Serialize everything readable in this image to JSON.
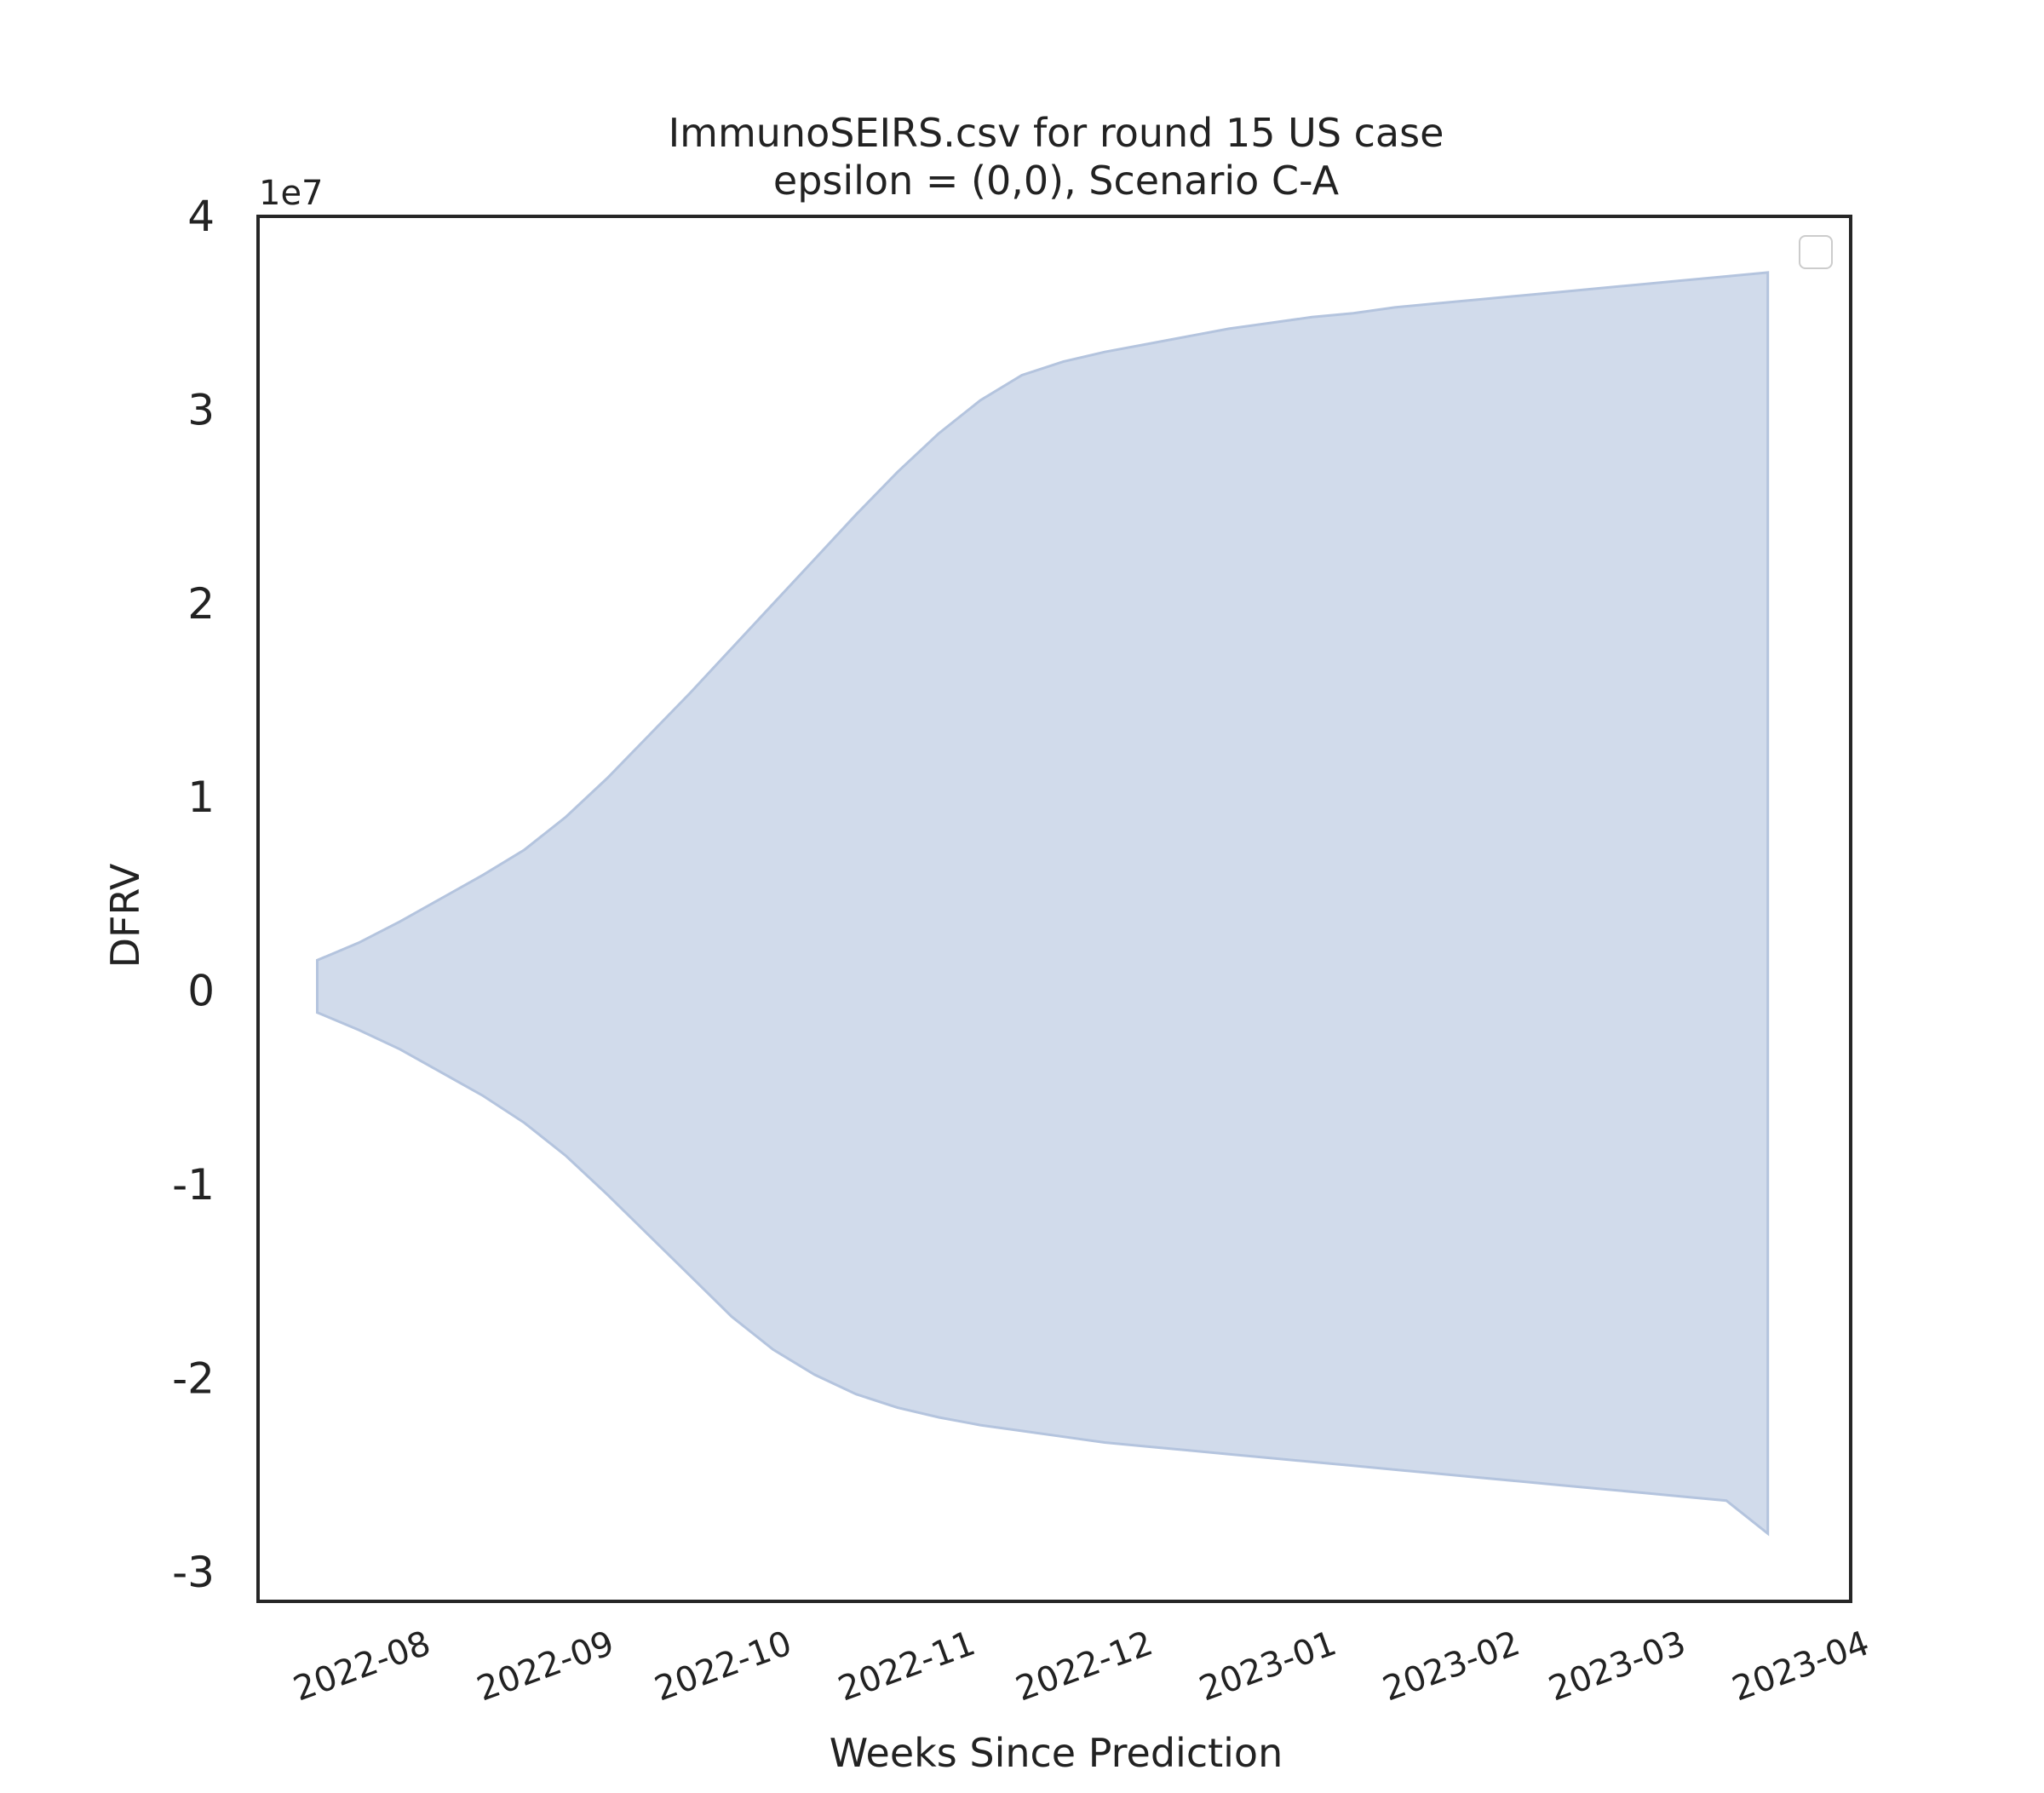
{
  "chart_data": {
    "type": "area",
    "title_line1": "ImmunoSEIRS.csv for round 15 US case",
    "title_line2": "epsilon = (0,0), Scenario C-A",
    "xlabel": "Weeks Since Prediction",
    "ylabel": "DFRV",
    "y_offset_label": "1e7",
    "y_scale": 10000000,
    "ylim": [
      -3.15,
      4.0
    ],
    "xlim": [
      "2022-07-14",
      "2023-04-09"
    ],
    "x_tick_labels": [
      "2022-08",
      "2022-09",
      "2022-10",
      "2022-11",
      "2022-12",
      "2023-01",
      "2023-02",
      "2023-03",
      "2023-04"
    ],
    "y_tick_labels": [
      "-3",
      "-2",
      "-1",
      "0",
      "1",
      "2",
      "3",
      "4"
    ],
    "y_tick_values": [
      -3,
      -2,
      -1,
      0,
      1,
      2,
      3,
      4
    ],
    "grid": false,
    "legend": {
      "placement": "top-right",
      "entries": []
    },
    "colors": {
      "fill": "#d1dbeb",
      "edge": "#b4c4de",
      "frame": "#262626"
    },
    "series": [
      {
        "x": [
          "2022-07-24",
          "2022-07-31",
          "2022-08-07",
          "2022-08-14",
          "2022-08-21",
          "2022-08-28",
          "2022-09-04",
          "2022-09-11",
          "2022-09-18",
          "2022-09-25",
          "2022-10-02",
          "2022-10-09",
          "2022-10-16",
          "2022-10-23",
          "2022-10-30",
          "2022-11-06",
          "2022-11-13",
          "2022-11-20",
          "2022-11-27",
          "2022-12-04",
          "2022-12-11",
          "2022-12-18",
          "2022-12-25",
          "2023-01-01",
          "2023-01-08",
          "2023-01-15",
          "2023-01-22",
          "2023-01-29",
          "2023-02-05",
          "2023-02-12",
          "2023-02-19",
          "2023-02-26",
          "2023-03-05",
          "2023-03-12",
          "2023-03-19",
          "2023-03-26"
        ],
        "upper": [
          0.16,
          0.25,
          0.36,
          0.48,
          0.6,
          0.73,
          0.9,
          1.1,
          1.32,
          1.54,
          1.77,
          2.0,
          2.23,
          2.46,
          2.68,
          2.88,
          3.05,
          3.18,
          3.25,
          3.3,
          3.34,
          3.38,
          3.42,
          3.45,
          3.48,
          3.5,
          3.53,
          3.55,
          3.57,
          3.59,
          3.61,
          3.63,
          3.65,
          3.67,
          3.69,
          3.71
        ],
        "lower": [
          -0.11,
          -0.2,
          -0.3,
          -0.42,
          -0.54,
          -0.68,
          -0.85,
          -1.05,
          -1.26,
          -1.47,
          -1.68,
          -1.85,
          -1.98,
          -2.08,
          -2.15,
          -2.2,
          -2.24,
          -2.27,
          -2.3,
          -2.33,
          -2.35,
          -2.37,
          -2.39,
          -2.41,
          -2.43,
          -2.45,
          -2.47,
          -2.49,
          -2.51,
          -2.53,
          -2.55,
          -2.57,
          -2.59,
          -2.61,
          -2.63,
          -2.8
        ]
      }
    ]
  }
}
